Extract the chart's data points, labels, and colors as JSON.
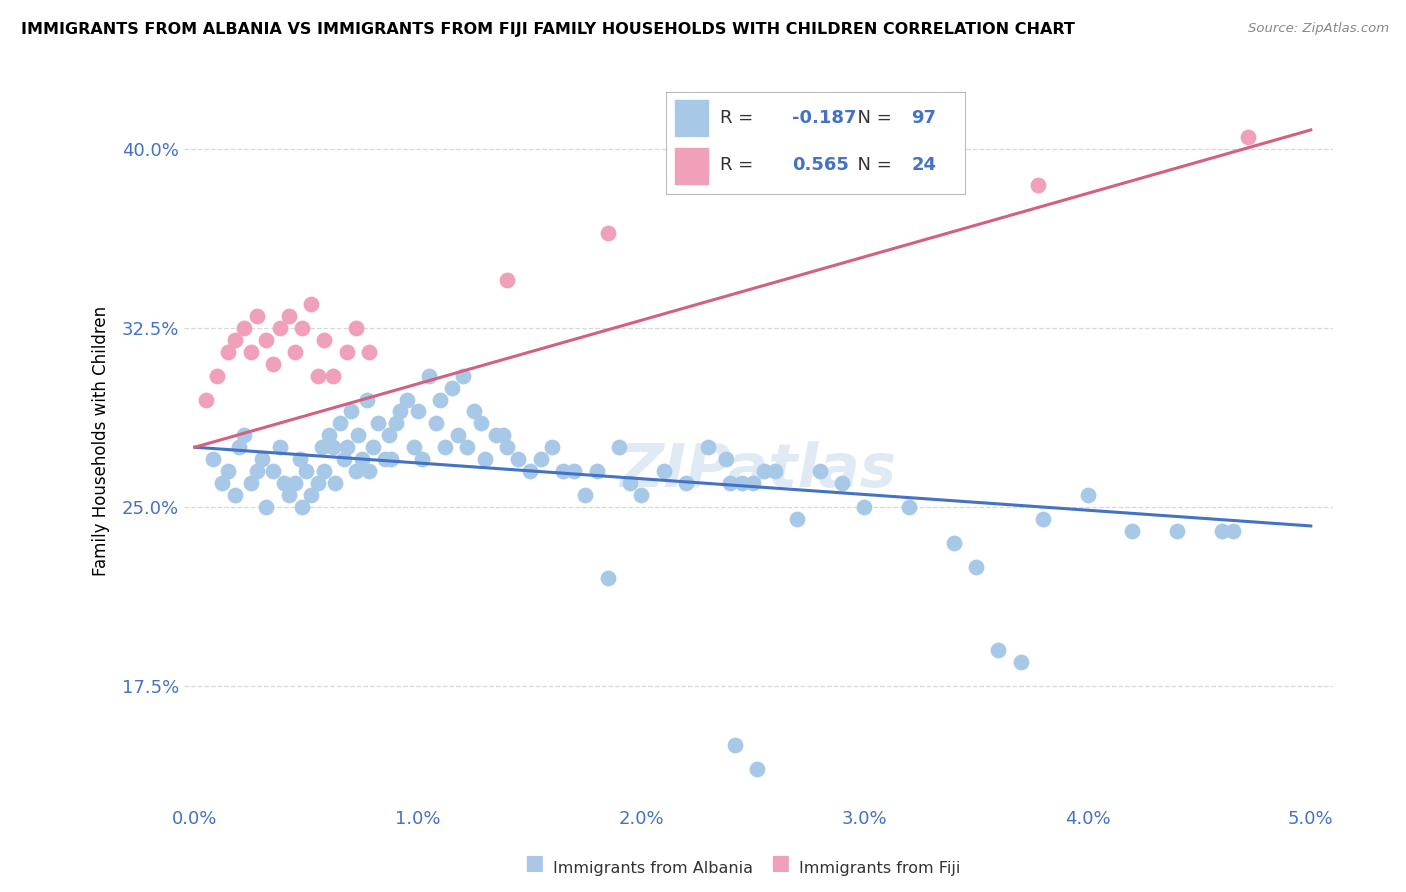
{
  "title": "IMMIGRANTS FROM ALBANIA VS IMMIGRANTS FROM FIJI FAMILY HOUSEHOLDS WITH CHILDREN CORRELATION CHART",
  "source": "Source: ZipAtlas.com",
  "ylabel": "Family Households with Children",
  "albania_color": "#a8c8e8",
  "fiji_color": "#f0a0b8",
  "albania_line_color": "#4472c4",
  "fiji_line_color": "#d46080",
  "albania_R": -0.187,
  "albania_N": 97,
  "fiji_R": 0.565,
  "fiji_N": 24,
  "legend_label_albania": "Immigrants from Albania",
  "legend_label_fiji": "Immigrants from Fiji",
  "albania_x": [
    0.08,
    0.12,
    0.15,
    0.18,
    0.2,
    0.22,
    0.25,
    0.28,
    0.3,
    0.32,
    0.35,
    0.38,
    0.4,
    0.42,
    0.45,
    0.47,
    0.48,
    0.5,
    0.52,
    0.55,
    0.57,
    0.58,
    0.6,
    0.62,
    0.63,
    0.65,
    0.67,
    0.68,
    0.7,
    0.72,
    0.73,
    0.75,
    0.77,
    0.78,
    0.8,
    0.82,
    0.85,
    0.87,
    0.88,
    0.9,
    0.92,
    0.95,
    0.98,
    1.0,
    1.02,
    1.05,
    1.08,
    1.1,
    1.12,
    1.15,
    1.18,
    1.2,
    1.22,
    1.25,
    1.28,
    1.3,
    1.35,
    1.38,
    1.4,
    1.45,
    1.5,
    1.55,
    1.6,
    1.65,
    1.7,
    1.75,
    1.8,
    1.85,
    1.9,
    1.95,
    2.0,
    2.1,
    2.2,
    2.3,
    2.4,
    2.5,
    2.6,
    2.7,
    2.8,
    2.9,
    3.0,
    3.2,
    3.4,
    3.5,
    3.6,
    3.7,
    3.8,
    4.0,
    4.2,
    4.4,
    4.6,
    4.65,
    2.45,
    2.55,
    2.42,
    2.38,
    2.52
  ],
  "albania_y": [
    27.0,
    26.0,
    26.5,
    25.5,
    27.5,
    28.0,
    26.0,
    26.5,
    27.0,
    25.0,
    26.5,
    27.5,
    26.0,
    25.5,
    26.0,
    27.0,
    25.0,
    26.5,
    25.5,
    26.0,
    27.5,
    26.5,
    28.0,
    27.5,
    26.0,
    28.5,
    27.0,
    27.5,
    29.0,
    26.5,
    28.0,
    27.0,
    29.5,
    26.5,
    27.5,
    28.5,
    27.0,
    28.0,
    27.0,
    28.5,
    29.0,
    29.5,
    27.5,
    29.0,
    27.0,
    30.5,
    28.5,
    29.5,
    27.5,
    30.0,
    28.0,
    30.5,
    27.5,
    29.0,
    28.5,
    27.0,
    28.0,
    28.0,
    27.5,
    27.0,
    26.5,
    27.0,
    27.5,
    26.5,
    26.5,
    25.5,
    26.5,
    22.0,
    27.5,
    26.0,
    25.5,
    26.5,
    26.0,
    27.5,
    26.0,
    26.0,
    26.5,
    24.5,
    26.5,
    26.0,
    25.0,
    25.0,
    23.5,
    22.5,
    19.0,
    18.5,
    24.5,
    25.5,
    24.0,
    24.0,
    24.0,
    24.0,
    26.0,
    26.5,
    15.0,
    27.0,
    14.0
  ],
  "fiji_x": [
    0.05,
    0.1,
    0.15,
    0.18,
    0.22,
    0.25,
    0.28,
    0.32,
    0.35,
    0.38,
    0.42,
    0.45,
    0.48,
    0.52,
    0.55,
    0.58,
    0.62,
    0.68,
    0.72,
    0.78,
    1.4,
    1.85,
    3.78,
    4.72
  ],
  "fiji_y": [
    29.5,
    30.5,
    31.5,
    32.0,
    32.5,
    31.5,
    33.0,
    32.0,
    31.0,
    32.5,
    33.0,
    31.5,
    32.5,
    33.5,
    30.5,
    32.0,
    30.5,
    31.5,
    32.5,
    31.5,
    34.5,
    36.5,
    38.5,
    40.5
  ],
  "albania_line_x0": 0.0,
  "albania_line_y0": 27.5,
  "albania_line_x1": 5.0,
  "albania_line_y1": 24.2,
  "fiji_line_x0": 0.0,
  "fiji_line_y0": 27.5,
  "fiji_line_x1": 5.0,
  "fiji_line_y1": 40.8,
  "xlim": [
    -0.05,
    5.1
  ],
  "ylim": [
    12.5,
    43.0
  ],
  "y_ticks": [
    17.5,
    25.0,
    32.5,
    40.0
  ],
  "x_ticks": [
    0,
    1,
    2,
    3,
    4,
    5
  ],
  "watermark": "ZIPatlas",
  "background_color": "#ffffff",
  "grid_color": "#d8d8d8"
}
